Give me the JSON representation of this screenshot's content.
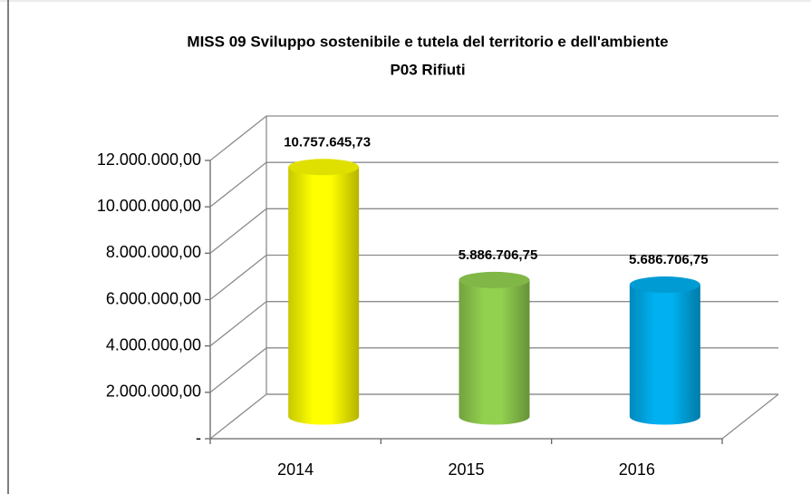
{
  "chart_data": {
    "type": "bar",
    "title": "MISS 09 Sviluppo sostenibile e tutela del territorio e dell'ambiente",
    "subtitle": "P03 Rifiuti",
    "categories": [
      "2014",
      "2015",
      "2016"
    ],
    "values": [
      10757645.73,
      5886706.75,
      5686706.75
    ],
    "value_labels": [
      "10.757.645,73",
      "5.886.706,75",
      "5.686.706,75"
    ],
    "colors": [
      "#ffff00",
      "#92d050",
      "#00b0f0"
    ],
    "ylim": [
      0,
      12000000
    ],
    "yticks": [
      {
        "value": 0,
        "label": "-"
      },
      {
        "value": 2000000,
        "label": "2.000.000,00"
      },
      {
        "value": 4000000,
        "label": "4.000.000,00"
      },
      {
        "value": 6000000,
        "label": "6.000.000,00"
      },
      {
        "value": 8000000,
        "label": "8.000.000,00"
      },
      {
        "value": 10000000,
        "label": "10.000.000,00"
      },
      {
        "value": 12000000,
        "label": "12.000.000,00"
      }
    ],
    "grid": true
  }
}
